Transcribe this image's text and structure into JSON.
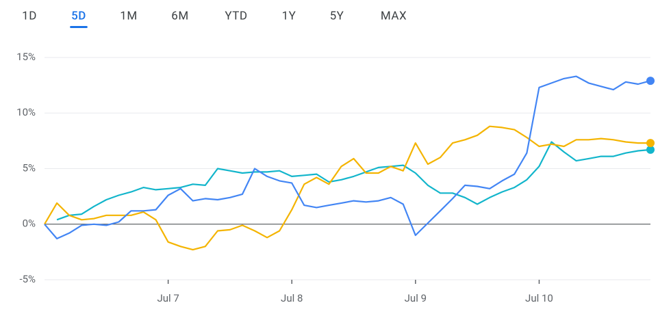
{
  "tabs": {
    "labels": [
      "1D",
      "5D",
      "1M",
      "6M",
      "YTD",
      "1Y",
      "5Y",
      "MAX"
    ],
    "selected": 1
  },
  "chart_data": {
    "type": "line",
    "x": [
      0,
      1,
      2,
      3,
      4,
      5,
      6,
      7,
      8,
      9,
      10,
      11,
      12,
      13,
      14,
      15,
      16,
      17,
      18,
      19,
      20,
      21,
      22,
      23,
      24,
      25,
      26,
      27,
      28,
      29,
      30,
      31,
      32,
      33,
      34,
      35,
      36,
      37,
      38,
      39,
      40,
      41,
      42,
      43,
      44,
      45,
      46,
      47,
      48,
      49
    ],
    "xlim": [
      0,
      49
    ],
    "xticks": [
      {
        "value": 10,
        "label": "Jul 7"
      },
      {
        "value": 20,
        "label": "Jul 8"
      },
      {
        "value": 30,
        "label": "Jul 9"
      },
      {
        "value": 40,
        "label": "Jul 10"
      }
    ],
    "ylim": [
      -5,
      15
    ],
    "yticks": [
      {
        "value": 15,
        "label": "15%"
      },
      {
        "value": 10,
        "label": "10%"
      },
      {
        "value": 5,
        "label": "5%"
      },
      {
        "value": 0,
        "label": "0%"
      },
      {
        "value": -5,
        "label": "-5%"
      }
    ],
    "grid": true,
    "series": [
      {
        "color": "#12b5cb",
        "values": [
          null,
          0.4,
          0.8,
          0.9,
          1.6,
          2.2,
          2.6,
          2.9,
          3.3,
          3.1,
          3.2,
          3.3,
          3.6,
          3.5,
          5.0,
          4.8,
          4.6,
          4.7,
          4.7,
          4.8,
          4.3,
          4.4,
          4.5,
          3.8,
          4.0,
          4.3,
          4.7,
          5.1,
          5.2,
          5.3,
          4.6,
          3.5,
          2.8,
          2.8,
          2.4,
          1.8,
          2.4,
          2.9,
          3.3,
          4.0,
          5.2,
          7.4,
          6.5,
          5.7,
          5.9,
          6.1,
          6.1,
          6.4,
          6.6,
          6.7
        ]
      },
      {
        "color": "#f4b400",
        "values": [
          0,
          1.9,
          0.8,
          0.4,
          0.5,
          0.8,
          0.8,
          0.8,
          1.1,
          0.4,
          -1.6,
          -2.0,
          -2.3,
          -2.0,
          -0.6,
          -0.5,
          -0.1,
          -0.6,
          -1.2,
          -0.6,
          1.3,
          3.6,
          4.2,
          3.6,
          5.2,
          5.9,
          4.6,
          4.6,
          5.2,
          4.8,
          7.3,
          5.4,
          6.0,
          7.3,
          7.6,
          8.0,
          8.8,
          8.7,
          8.5,
          7.8,
          7.0,
          7.2,
          7.0,
          7.6,
          7.6,
          7.7,
          7.6,
          7.4,
          7.3,
          7.3
        ]
      },
      {
        "color": "#4285f4",
        "values": [
          0,
          -1.3,
          -0.8,
          -0.1,
          0,
          -0.1,
          0.2,
          1.2,
          1.2,
          1.3,
          2.6,
          3.2,
          2.1,
          2.3,
          2.2,
          2.4,
          2.7,
          5.0,
          4.3,
          3.9,
          3.7,
          1.7,
          1.5,
          1.7,
          1.9,
          2.1,
          2.0,
          2.1,
          2.4,
          1.8,
          -1.0,
          0.1,
          1.2,
          2.3,
          3.5,
          3.4,
          3.2,
          3.9,
          4.5,
          6.4,
          12.3,
          12.7,
          13.1,
          13.3,
          12.7,
          12.4,
          12.1,
          12.8,
          12.6,
          12.9
        ]
      }
    ]
  }
}
